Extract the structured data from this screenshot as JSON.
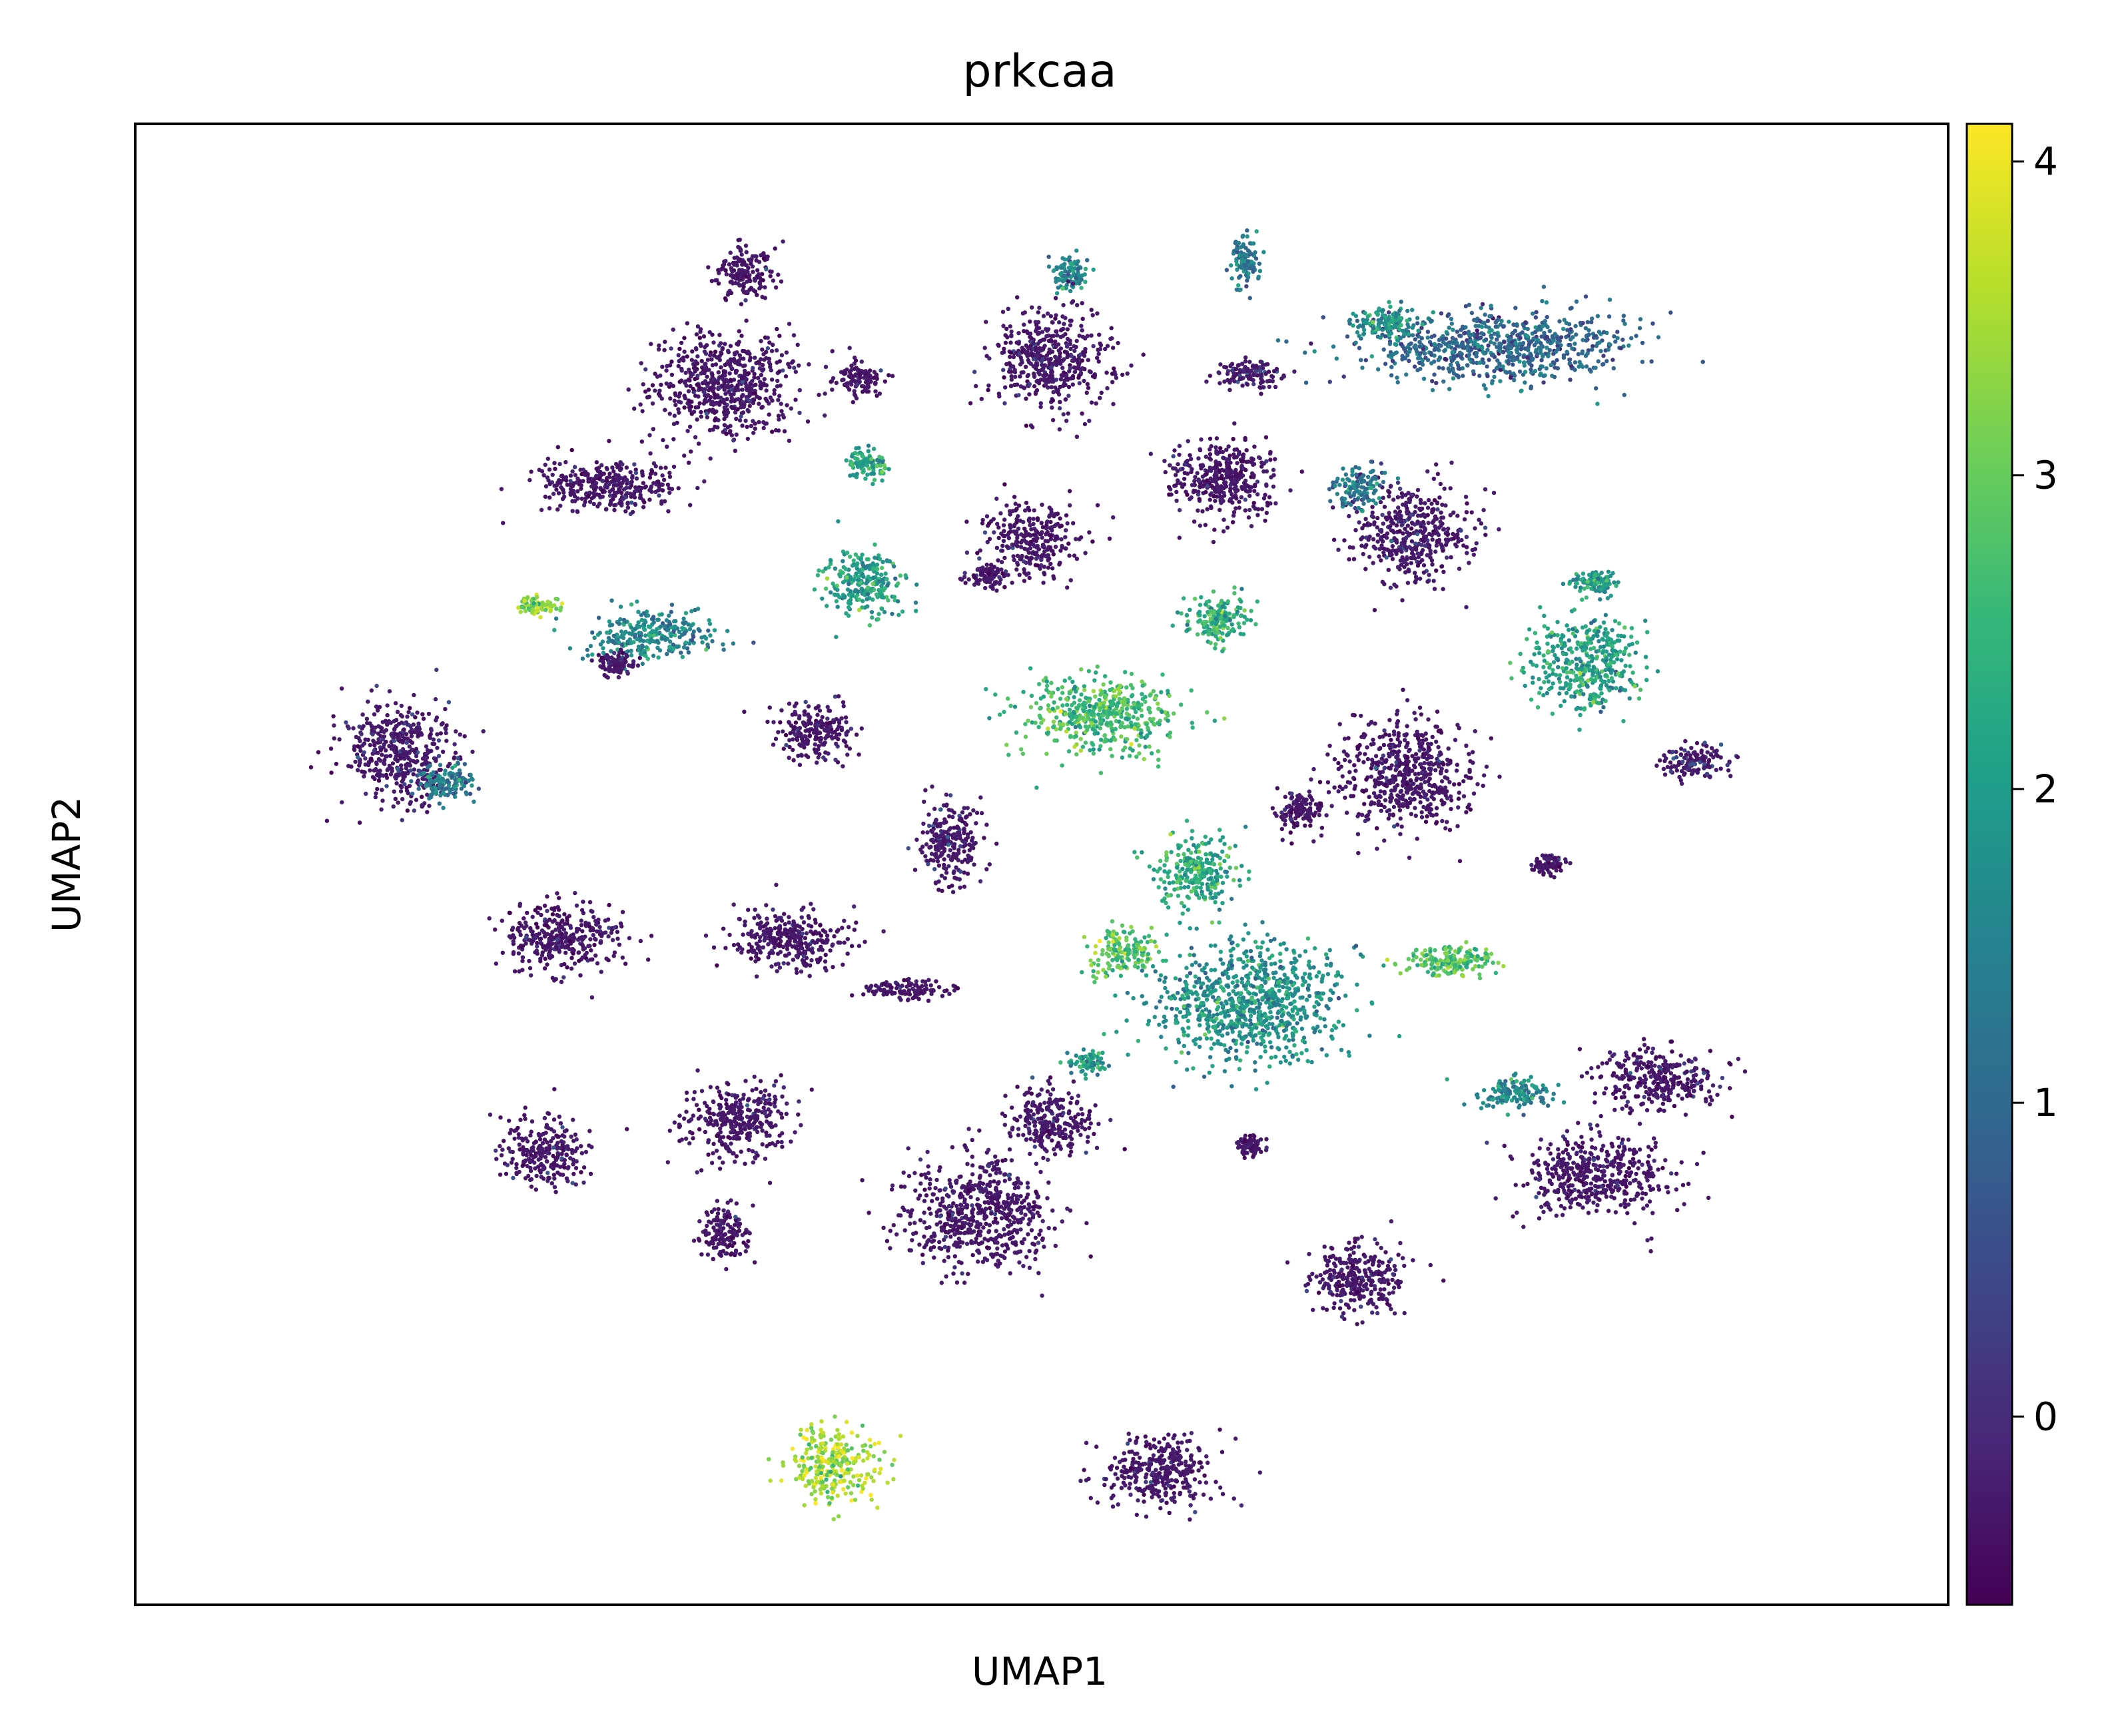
{
  "chart_data": {
    "type": "scatter",
    "title": "prkcaa",
    "xlabel": "UMAP1",
    "ylabel": "UMAP2",
    "x_ticks_shown": false,
    "y_ticks_shown": false,
    "grid": false,
    "colormap": "viridis",
    "colorbar": {
      "range": [
        -0.6,
        4.12
      ],
      "ticks": [
        0,
        1,
        2,
        3,
        4
      ],
      "tick_labels": [
        "0",
        "1",
        "2",
        "3",
        "4"
      ],
      "colors": [
        "#440154",
        "#482878",
        "#3e4989",
        "#31688e",
        "#26828e",
        "#1f9e89",
        "#35b779",
        "#6ece58",
        "#b5de2b",
        "#fde725"
      ]
    },
    "xlim": [
      0,
      100
    ],
    "ylim": [
      0,
      100
    ],
    "clusters": [
      {
        "x": 33.5,
        "y": 90.0,
        "sx": 1.4,
        "sy": 1.6,
        "value": -0.3
      },
      {
        "x": 32.5,
        "y": 82.3,
        "sx": 3.6,
        "sy": 3.2,
        "value": -0.3
      },
      {
        "x": 40.0,
        "y": 82.8,
        "sx": 1.2,
        "sy": 1.0,
        "value": -0.2
      },
      {
        "x": 40.4,
        "y": 77.0,
        "sx": 1.0,
        "sy": 0.8,
        "value": 2.2
      },
      {
        "x": 51.5,
        "y": 90.0,
        "sx": 1.0,
        "sy": 1.0,
        "value": 1.6
      },
      {
        "x": 50.5,
        "y": 84.0,
        "sx": 3.0,
        "sy": 3.0,
        "value": -0.2
      },
      {
        "x": 61.3,
        "y": 90.5,
        "sx": 0.6,
        "sy": 1.7,
        "value": 1.3
      },
      {
        "x": 60.0,
        "y": 76.0,
        "sx": 2.6,
        "sy": 2.6,
        "value": -0.2
      },
      {
        "x": 61.5,
        "y": 83.0,
        "sx": 1.5,
        "sy": 0.9,
        "value": 0.3
      },
      {
        "x": 75.0,
        "y": 85.0,
        "sx": 6.8,
        "sy": 2.2,
        "value": 1.0
      },
      {
        "x": 69.0,
        "y": 86.5,
        "sx": 1.5,
        "sy": 0.9,
        "value": 1.9
      },
      {
        "x": 26.0,
        "y": 75.5,
        "sx": 3.6,
        "sy": 1.6,
        "value": -0.3
      },
      {
        "x": 40.3,
        "y": 69.0,
        "sx": 2.0,
        "sy": 2.0,
        "value": 2.1
      },
      {
        "x": 49.5,
        "y": 72.0,
        "sx": 2.3,
        "sy": 2.1,
        "value": -0.3
      },
      {
        "x": 47.0,
        "y": 69.5,
        "sx": 1.0,
        "sy": 0.7,
        "value": -0.4
      },
      {
        "x": 70.5,
        "y": 72.5,
        "sx": 2.8,
        "sy": 3.0,
        "value": -0.1
      },
      {
        "x": 67.5,
        "y": 75.5,
        "sx": 1.3,
        "sy": 1.2,
        "value": 1.3
      },
      {
        "x": 59.7,
        "y": 66.5,
        "sx": 1.5,
        "sy": 1.6,
        "value": 2.4
      },
      {
        "x": 22.2,
        "y": 67.5,
        "sx": 1.0,
        "sy": 0.6,
        "value": 3.2
      },
      {
        "x": 28.5,
        "y": 65.5,
        "sx": 3.3,
        "sy": 1.5,
        "value": 1.6
      },
      {
        "x": 26.5,
        "y": 63.5,
        "sx": 0.9,
        "sy": 0.8,
        "value": -0.3
      },
      {
        "x": 53.0,
        "y": 60.0,
        "sx": 3.8,
        "sy": 2.4,
        "value": 2.6
      },
      {
        "x": 80.0,
        "y": 63.5,
        "sx": 2.7,
        "sy": 2.8,
        "value": 2.1
      },
      {
        "x": 80.5,
        "y": 69.0,
        "sx": 1.3,
        "sy": 0.7,
        "value": 2.0
      },
      {
        "x": 14.5,
        "y": 57.5,
        "sx": 2.8,
        "sy": 3.0,
        "value": -0.1
      },
      {
        "x": 17.0,
        "y": 55.5,
        "sx": 1.4,
        "sy": 1.2,
        "value": 1.4
      },
      {
        "x": 37.6,
        "y": 59.0,
        "sx": 2.0,
        "sy": 1.7,
        "value": -0.3
      },
      {
        "x": 70.0,
        "y": 56.0,
        "sx": 3.3,
        "sy": 3.3,
        "value": -0.3
      },
      {
        "x": 64.2,
        "y": 53.7,
        "sx": 1.1,
        "sy": 1.3,
        "value": -0.4
      },
      {
        "x": 86.0,
        "y": 57.0,
        "sx": 1.6,
        "sy": 1.0,
        "value": 0.4
      },
      {
        "x": 45.0,
        "y": 51.5,
        "sx": 1.6,
        "sy": 2.5,
        "value": 0.1
      },
      {
        "x": 78.0,
        "y": 50.0,
        "sx": 0.8,
        "sy": 0.6,
        "value": -0.2
      },
      {
        "x": 23.5,
        "y": 45.0,
        "sx": 3.0,
        "sy": 2.0,
        "value": -0.3
      },
      {
        "x": 36.0,
        "y": 45.0,
        "sx": 3.2,
        "sy": 1.8,
        "value": -0.3
      },
      {
        "x": 42.5,
        "y": 41.5,
        "sx": 2.2,
        "sy": 0.6,
        "value": -0.4
      },
      {
        "x": 54.5,
        "y": 44.0,
        "sx": 1.6,
        "sy": 1.4,
        "value": 2.8
      },
      {
        "x": 61.5,
        "y": 40.5,
        "sx": 4.7,
        "sy": 3.7,
        "value": 1.8
      },
      {
        "x": 58.5,
        "y": 49.5,
        "sx": 2.0,
        "sy": 2.2,
        "value": 2.3
      },
      {
        "x": 72.5,
        "y": 43.5,
        "sx": 2.3,
        "sy": 1.0,
        "value": 2.8
      },
      {
        "x": 33.0,
        "y": 32.5,
        "sx": 2.6,
        "sy": 2.2,
        "value": -0.2
      },
      {
        "x": 32.5,
        "y": 25.0,
        "sx": 1.2,
        "sy": 1.8,
        "value": -0.4
      },
      {
        "x": 22.5,
        "y": 30.5,
        "sx": 2.0,
        "sy": 2.1,
        "value": -0.2
      },
      {
        "x": 46.5,
        "y": 26.5,
        "sx": 3.6,
        "sy": 3.4,
        "value": -0.3
      },
      {
        "x": 50.5,
        "y": 32.5,
        "sx": 2.2,
        "sy": 2.0,
        "value": -0.1
      },
      {
        "x": 52.5,
        "y": 36.5,
        "sx": 0.9,
        "sy": 0.6,
        "value": 2.0
      },
      {
        "x": 80.5,
        "y": 29.0,
        "sx": 3.6,
        "sy": 2.4,
        "value": -0.2
      },
      {
        "x": 84.0,
        "y": 35.5,
        "sx": 3.0,
        "sy": 1.8,
        "value": -0.2
      },
      {
        "x": 76.0,
        "y": 34.5,
        "sx": 1.8,
        "sy": 1.1,
        "value": 1.6
      },
      {
        "x": 61.5,
        "y": 31.0,
        "sx": 0.5,
        "sy": 0.7,
        "value": -0.4
      },
      {
        "x": 67.5,
        "y": 22.0,
        "sx": 2.3,
        "sy": 2.2,
        "value": -0.2
      },
      {
        "x": 38.5,
        "y": 9.5,
        "sx": 2.2,
        "sy": 2.3,
        "value": 3.5
      },
      {
        "x": 56.5,
        "y": 9.0,
        "sx": 2.8,
        "sy": 2.1,
        "value": -0.2
      }
    ]
  }
}
